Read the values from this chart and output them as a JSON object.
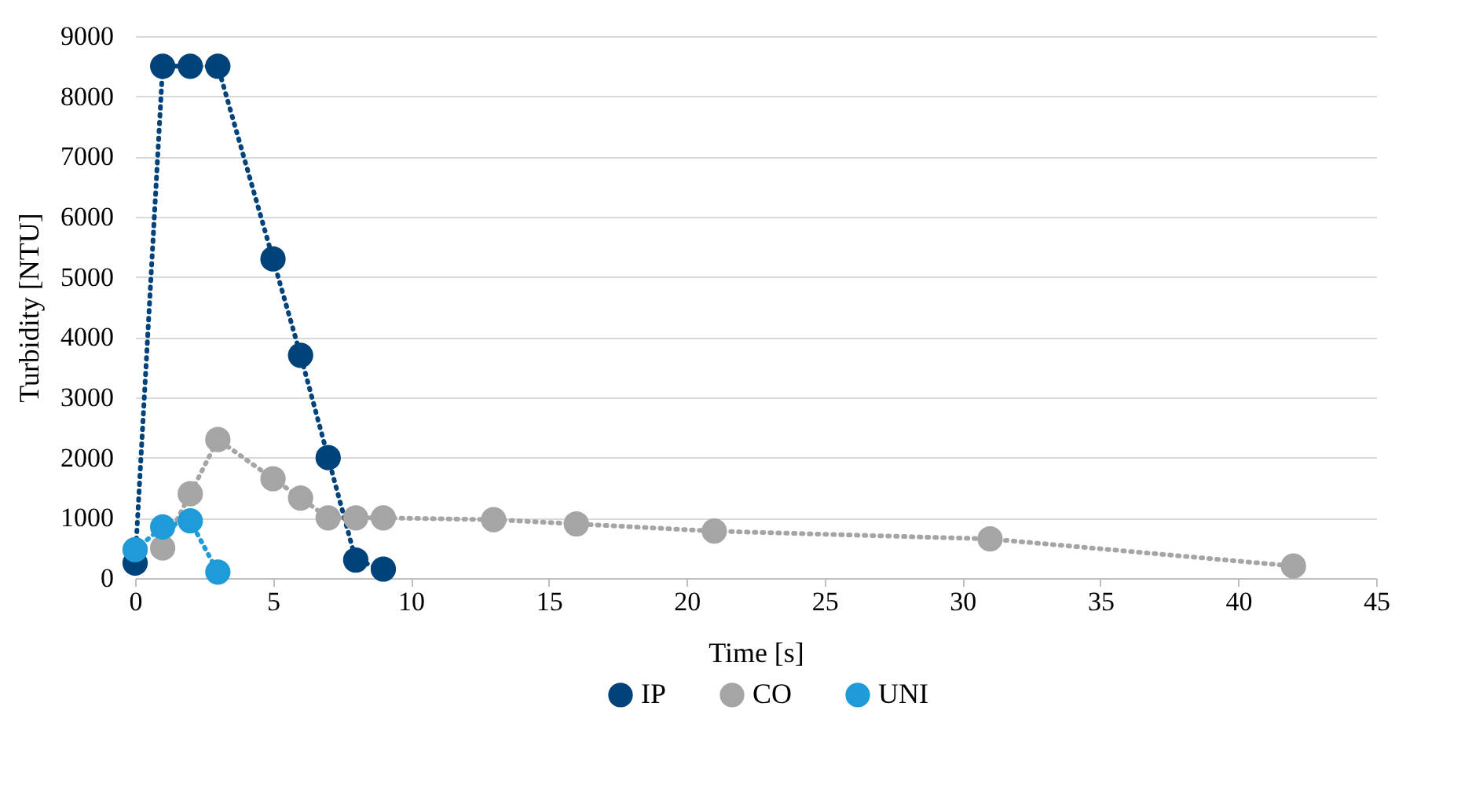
{
  "chart_data": {
    "type": "line",
    "xlabel": "Time [s]",
    "ylabel": "Turbidity [NTU]",
    "xlim": [
      0,
      45
    ],
    "xticks": [
      0,
      5,
      10,
      15,
      20,
      25,
      30,
      35,
      40,
      45
    ],
    "ylim": [
      0,
      9000
    ],
    "yticks": [
      0,
      1000,
      2000,
      3000,
      4000,
      5000,
      6000,
      7000,
      8000,
      9000
    ],
    "grid": "y",
    "legend": "bottom",
    "marker": "circle",
    "line_style": "dotted",
    "series": [
      {
        "name": "IP",
        "color": "#00427a",
        "x": [
          0,
          1,
          2,
          3,
          5,
          6,
          7,
          8,
          9
        ],
        "values": [
          250,
          8500,
          8500,
          8500,
          5300,
          3700,
          2000,
          300,
          150
        ]
      },
      {
        "name": "CO",
        "color": "#a5a5a5",
        "x": [
          1,
          2,
          3,
          5,
          6,
          7,
          8,
          9,
          13,
          16,
          21,
          31,
          42
        ],
        "values": [
          500,
          1400,
          2300,
          1650,
          1330,
          1000,
          1000,
          1000,
          970,
          900,
          780,
          650,
          200
        ]
      },
      {
        "name": "UNI",
        "color": "#1f9bd9",
        "x": [
          0,
          1,
          2,
          3
        ],
        "values": [
          470,
          850,
          950,
          100
        ]
      }
    ]
  }
}
